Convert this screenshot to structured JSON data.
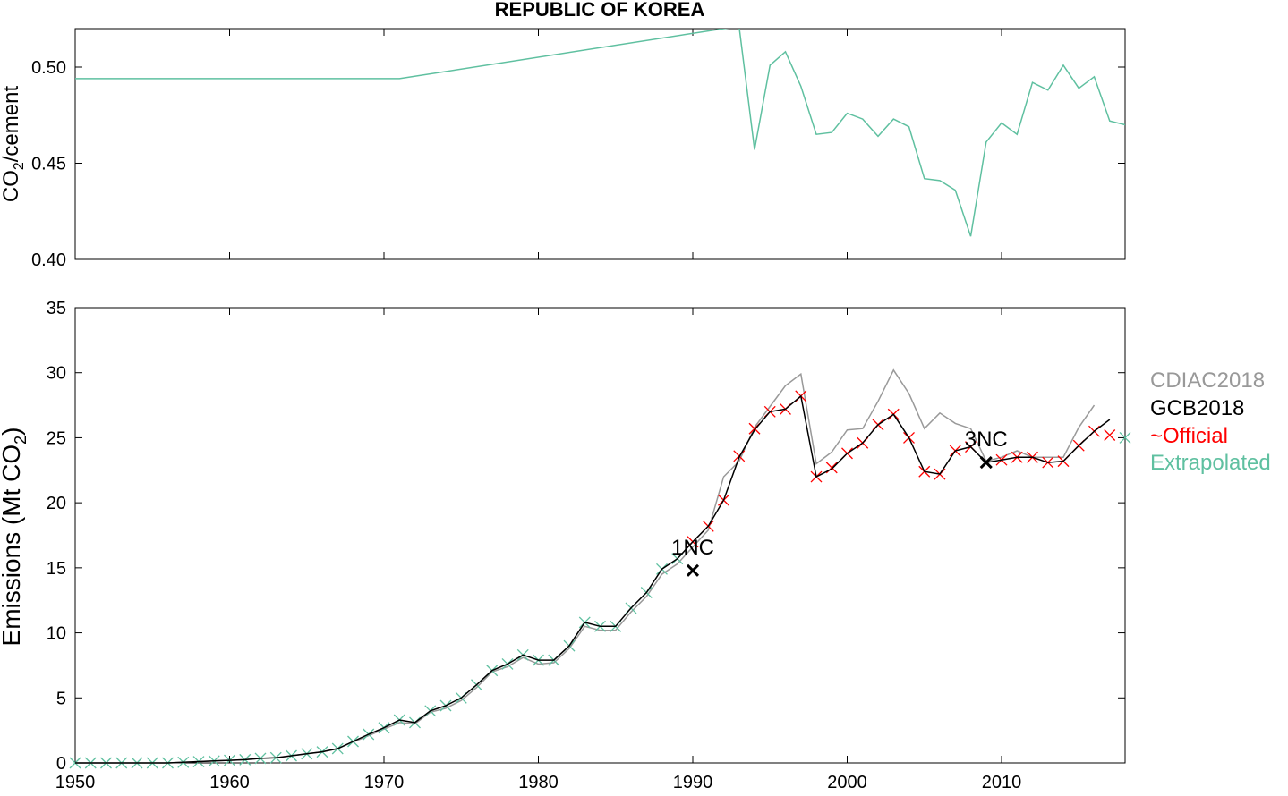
{
  "title": "REPUBLIC OF KOREA",
  "colors": {
    "cdiac": "#999999",
    "gcb": "#000000",
    "official": "#ff0000",
    "extrapolated": "#5fc0a0"
  },
  "chart_data": [
    {
      "type": "line",
      "panel": "top",
      "ylabel_main": "CO",
      "ylabel_sub": "2",
      "ylabel_rest": "/cement",
      "xlim": [
        1950,
        2018
      ],
      "ylim": [
        0.4,
        0.52
      ],
      "yticks": [
        0.4,
        0.45,
        0.5
      ],
      "ytick_labels": [
        "0.40",
        "0.45",
        "0.50"
      ],
      "grid": false,
      "series": [
        {
          "color": "#5fc0a0",
          "x": [
            1950,
            1971,
            1992,
            1993,
            1994,
            1995,
            1996,
            1997,
            1998,
            1999,
            2000,
            2001,
            2002,
            2003,
            2004,
            2005,
            2006,
            2007,
            2008,
            2009,
            2010,
            2011,
            2012,
            2013,
            2014,
            2015,
            2016,
            2017,
            2018
          ],
          "y": [
            0.494,
            0.494,
            0.52,
            0.521,
            0.457,
            0.501,
            0.508,
            0.49,
            0.465,
            0.466,
            0.476,
            0.473,
            0.464,
            0.473,
            0.469,
            0.442,
            0.441,
            0.436,
            0.412,
            0.461,
            0.471,
            0.465,
            0.492,
            0.488,
            0.501,
            0.489,
            0.495,
            0.472,
            0.47
          ]
        }
      ]
    },
    {
      "type": "line",
      "panel": "bottom",
      "ylabel_main": "Emissions (Mt CO",
      "ylabel_sub": "2",
      "ylabel_rest": ")",
      "xlim": [
        1950,
        2018
      ],
      "ylim": [
        0,
        35
      ],
      "xticks": [
        1950,
        1960,
        1970,
        1980,
        1990,
        2000,
        2010
      ],
      "xtick_labels": [
        "1950",
        "1960",
        "1970",
        "1980",
        "1990",
        "2000",
        "2010"
      ],
      "yticks": [
        0,
        5,
        10,
        15,
        20,
        25,
        30,
        35
      ],
      "ytick_labels": [
        "0",
        "5",
        "10",
        "15",
        "20",
        "25",
        "30",
        "35"
      ],
      "grid": false,
      "legend_position": "right",
      "legend": [
        "CDIAC2018",
        "GCB2018",
        "~Official",
        "Extrapolated"
      ],
      "series": [
        {
          "name": "CDIAC2018",
          "color": "#999999",
          "x": [
            1950,
            1951,
            1952,
            1953,
            1954,
            1955,
            1956,
            1957,
            1958,
            1959,
            1960,
            1961,
            1962,
            1963,
            1964,
            1965,
            1966,
            1967,
            1968,
            1969,
            1970,
            1971,
            1972,
            1973,
            1974,
            1975,
            1976,
            1977,
            1978,
            1979,
            1980,
            1981,
            1982,
            1983,
            1984,
            1985,
            1986,
            1987,
            1988,
            1989,
            1990,
            1991,
            1992,
            1993,
            1994,
            1995,
            1996,
            1997,
            1998,
            1999,
            2000,
            2001,
            2002,
            2003,
            2004,
            2005,
            2006,
            2007,
            2008,
            2009,
            2010,
            2011,
            2012,
            2013,
            2014,
            2015,
            2016
          ],
          "y": [
            0,
            0,
            0,
            0,
            0,
            0,
            0,
            0.05,
            0.1,
            0.15,
            0.2,
            0.25,
            0.35,
            0.4,
            0.55,
            0.7,
            0.85,
            1.1,
            1.6,
            2.1,
            2.6,
            3.1,
            3.0,
            3.9,
            4.2,
            4.8,
            5.8,
            7.0,
            7.4,
            8.1,
            7.6,
            7.7,
            8.8,
            10.5,
            10.2,
            10.2,
            11.6,
            12.8,
            14.5,
            15.3,
            16.6,
            17.9,
            22.0,
            23.2,
            25.8,
            27.4,
            29.0,
            29.9,
            23.0,
            23.9,
            25.6,
            25.7,
            27.8,
            30.2,
            28.4,
            25.7,
            26.9,
            26.1,
            25.7,
            23.2,
            23.5,
            24.0,
            23.5,
            23.5,
            23.5,
            25.8,
            27.5
          ]
        },
        {
          "name": "GCB2018",
          "color": "#000000",
          "x": [
            1950,
            1951,
            1952,
            1953,
            1954,
            1955,
            1956,
            1957,
            1958,
            1959,
            1960,
            1961,
            1962,
            1963,
            1964,
            1965,
            1966,
            1967,
            1968,
            1969,
            1970,
            1971,
            1972,
            1973,
            1974,
            1975,
            1976,
            1977,
            1978,
            1979,
            1980,
            1981,
            1982,
            1983,
            1984,
            1985,
            1986,
            1987,
            1988,
            1989,
            1990,
            1991,
            1992,
            1993,
            1994,
            1995,
            1996,
            1997,
            1998,
            1999,
            2000,
            2001,
            2002,
            2003,
            2004,
            2005,
            2006,
            2007,
            2008,
            2009,
            2010,
            2011,
            2012,
            2013,
            2014,
            2015,
            2016,
            2017
          ],
          "y": [
            0,
            0,
            0,
            0,
            0,
            0,
            0,
            0.05,
            0.1,
            0.15,
            0.2,
            0.25,
            0.35,
            0.4,
            0.55,
            0.7,
            0.85,
            1.1,
            1.65,
            2.2,
            2.7,
            3.3,
            3.1,
            4.0,
            4.4,
            5.0,
            6.0,
            7.1,
            7.6,
            8.3,
            7.9,
            7.9,
            9.0,
            10.8,
            10.5,
            10.5,
            11.9,
            13.1,
            14.9,
            15.7,
            17.0,
            18.2,
            20.2,
            23.5,
            25.6,
            27.0,
            27.2,
            28.2,
            22.0,
            22.6,
            23.8,
            24.6,
            26.0,
            26.8,
            25.0,
            22.4,
            22.2,
            24.0,
            24.3,
            23.1,
            23.3,
            23.5,
            23.5,
            23.1,
            23.2,
            24.4,
            25.5,
            26.4
          ]
        },
        {
          "name": "~Official",
          "color": "#ff0000",
          "x": [
            1990,
            1991,
            1992,
            1993,
            1994,
            1995,
            1996,
            1997,
            1998,
            1999,
            2000,
            2001,
            2002,
            2003,
            2004,
            2005,
            2006,
            2007,
            2008,
            2009,
            2010,
            2011,
            2012,
            2013,
            2014,
            2015,
            2016,
            2017
          ],
          "y": [
            17.0,
            18.2,
            20.2,
            23.6,
            25.7,
            27.0,
            27.2,
            28.2,
            22.0,
            22.7,
            23.8,
            24.6,
            26.0,
            26.8,
            25.0,
            22.4,
            22.2,
            24.0,
            24.3,
            23.1,
            23.3,
            23.5,
            23.5,
            23.1,
            23.2,
            24.4,
            25.5,
            25.2
          ]
        },
        {
          "name": "Extrapolated",
          "color": "#5fc0a0",
          "x": [
            1950,
            1951,
            1952,
            1953,
            1954,
            1955,
            1956,
            1957,
            1958,
            1959,
            1960,
            1961,
            1962,
            1963,
            1964,
            1965,
            1966,
            1967,
            1968,
            1969,
            1970,
            1971,
            1972,
            1973,
            1974,
            1975,
            1976,
            1977,
            1978,
            1979,
            1980,
            1981,
            1982,
            1983,
            1984,
            1985,
            1986,
            1987,
            1988,
            1989,
            2018
          ],
          "y": [
            0,
            0,
            0,
            0,
            0,
            0,
            0,
            0.05,
            0.1,
            0.15,
            0.2,
            0.25,
            0.35,
            0.4,
            0.55,
            0.7,
            0.85,
            1.1,
            1.65,
            2.2,
            2.7,
            3.3,
            3.1,
            4.0,
            4.4,
            5.0,
            6.0,
            7.1,
            7.6,
            8.3,
            7.9,
            7.9,
            9.0,
            10.8,
            10.5,
            10.5,
            11.9,
            13.1,
            14.9,
            15.7,
            25.0
          ]
        }
      ],
      "annotations": [
        {
          "label": "1NC",
          "x": 1990,
          "y": 14.8
        },
        {
          "label": "3NC",
          "x": 2009,
          "y": 23.1
        }
      ]
    }
  ]
}
